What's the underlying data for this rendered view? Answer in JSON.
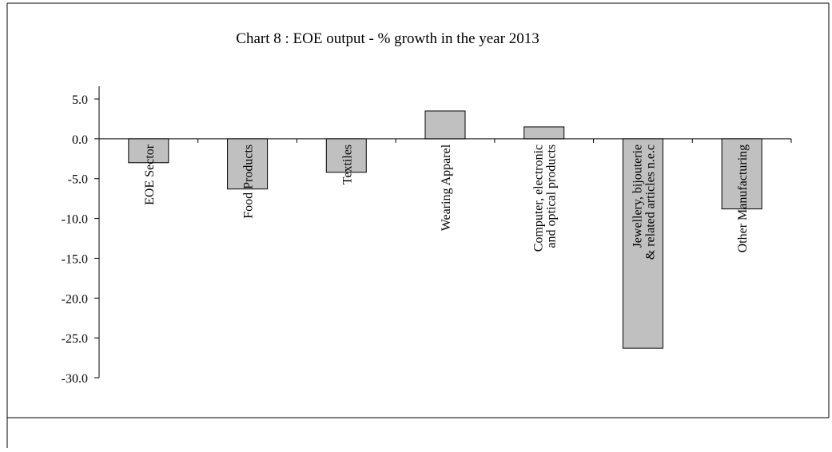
{
  "chart_data": {
    "type": "bar",
    "title": "Chart 8 : EOE output - % growth in the year 2013",
    "xlabel": "",
    "ylabel": "",
    "categories": [
      [
        "EOE Sector"
      ],
      [
        "Food Products"
      ],
      [
        "Textiles"
      ],
      [
        "Wearing Apparel"
      ],
      [
        "Computer, electronic",
        "and optical products"
      ],
      [
        "Jewellery, bijouterie",
        "& related articles n.e.c"
      ],
      [
        "Other Manufacturing"
      ]
    ],
    "values": [
      -3.0,
      -6.3,
      -4.2,
      3.5,
      1.5,
      -26.3,
      -8.8
    ],
    "ylim": [
      -30,
      5
    ],
    "yticks": [
      "5.0",
      "0.0",
      "-5.0",
      "-10.0",
      "-15.0",
      "-20.0",
      "-25.0",
      "-30.0"
    ],
    "bar_color": "#c0c0c0",
    "grid": false,
    "legend": "none"
  }
}
